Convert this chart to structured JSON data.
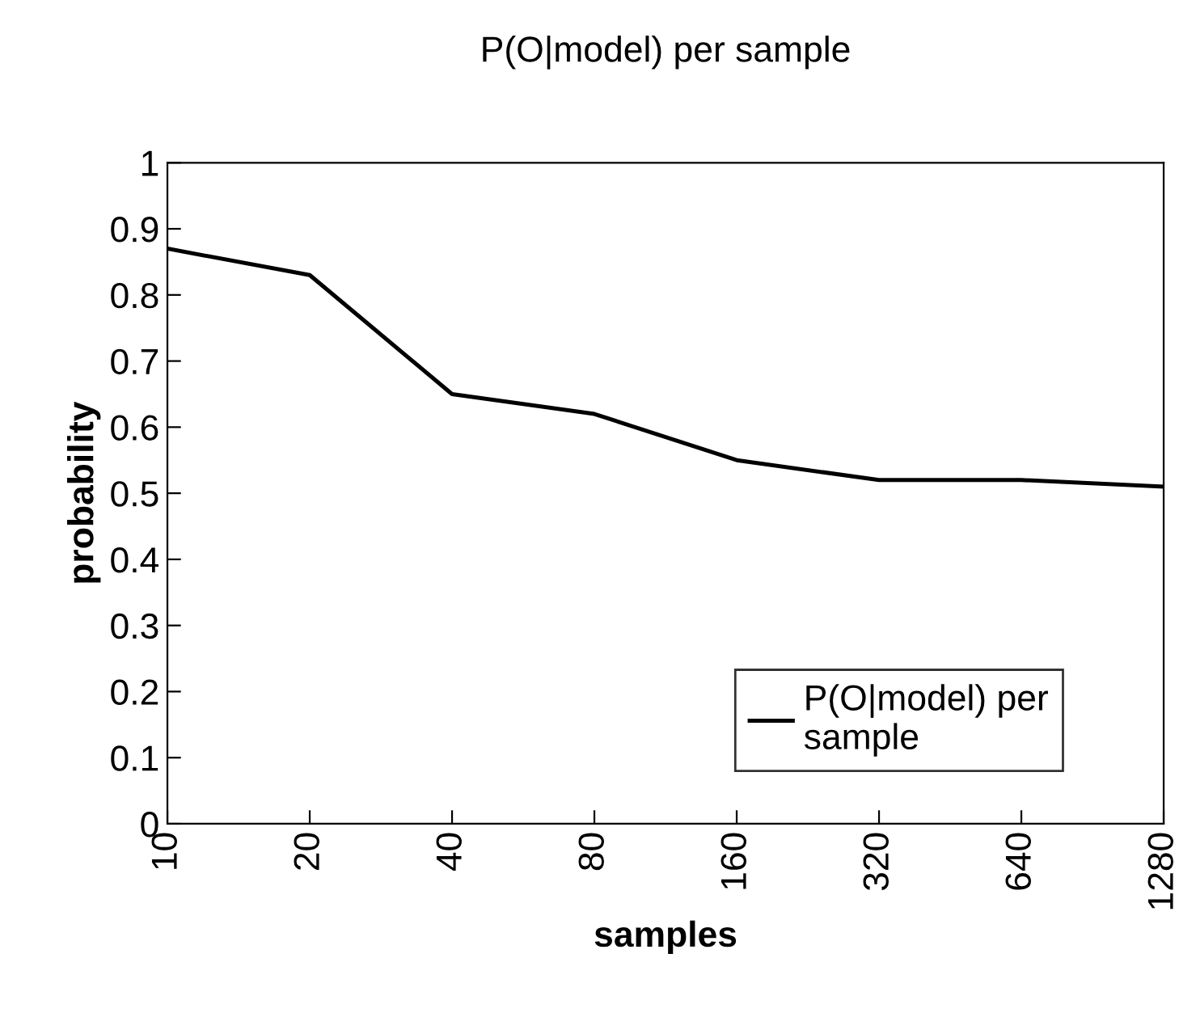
{
  "chart_data": {
    "type": "line",
    "title": "P(O|model) per sample",
    "xlabel": "samples",
    "ylabel": "probability",
    "categories": [
      "10",
      "20",
      "40",
      "80",
      "160",
      "320",
      "640",
      "1280"
    ],
    "series": [
      {
        "name": "P(O|model) per\nsample",
        "color": "#000000",
        "values": [
          0.87,
          0.83,
          0.65,
          0.62,
          0.55,
          0.52,
          0.52,
          0.51
        ]
      }
    ],
    "ylim": [
      0,
      1
    ],
    "yticks": [
      0,
      {
        "value": 0.1,
        "label": "0.1"
      },
      {
        "value": 0.2,
        "label": "0.2"
      },
      {
        "value": 0.3,
        "label": "0.3"
      },
      {
        "value": 0.4,
        "label": "0.4"
      },
      {
        "value": 0.5,
        "label": "0.5"
      },
      {
        "value": 0.6,
        "label": "0.6"
      },
      {
        "value": 0.7,
        "label": "0.7"
      },
      {
        "value": 0.8,
        "label": "0.8"
      },
      {
        "value": 0.9,
        "label": "0.9"
      },
      1
    ],
    "grid": false,
    "legend": "right",
    "marker": "none",
    "line_style": "solid"
  }
}
